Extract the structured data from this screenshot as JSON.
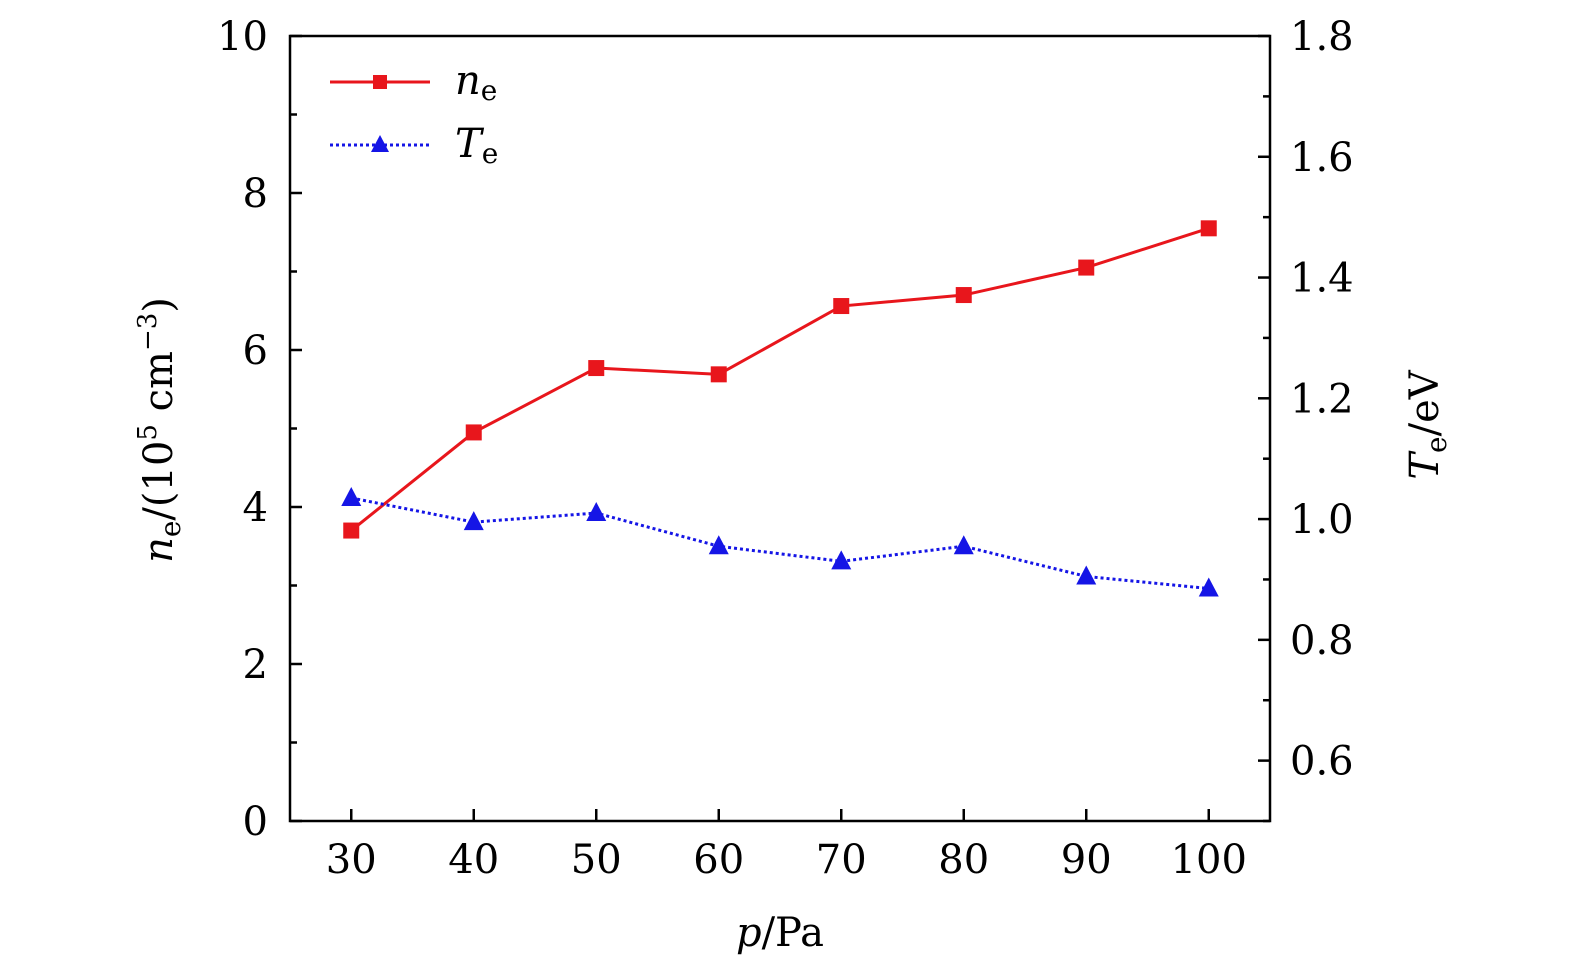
{
  "chart_data": {
    "type": "line",
    "x": [
      30,
      40,
      50,
      60,
      70,
      80,
      90,
      100
    ],
    "x_ticks": [
      "30",
      "40",
      "50",
      "60",
      "70",
      "80",
      "90",
      "100"
    ],
    "xlim": [
      25,
      105
    ],
    "xlabel": {
      "var": "p",
      "unit": "/Pa"
    },
    "ylim_left": [
      0,
      10
    ],
    "y_ticks_left": [
      0,
      2,
      4,
      6,
      8,
      10
    ],
    "y_ticks_left_labels": [
      "0",
      "2",
      "4",
      "6",
      "8",
      "10"
    ],
    "ylabel_left": {
      "var": "n",
      "sub": "e",
      "pre": "/(10",
      "sup1": "5",
      "mid": " cm",
      "sup2": "−3",
      "post": ")"
    },
    "ylim_right": [
      0.5,
      1.8
    ],
    "y_ticks_right": [
      0.6,
      0.8,
      1.0,
      1.2,
      1.4,
      1.6,
      1.8
    ],
    "y_ticks_right_labels": [
      "0.6",
      "0.8",
      "1.0",
      "1.2",
      "1.4",
      "1.6",
      "1.8"
    ],
    "ylabel_right": {
      "var": "T",
      "sub": "e",
      "unit": "/eV"
    },
    "series": [
      {
        "name": "ne",
        "legend_var": "n",
        "legend_sub": "e",
        "axis": "left",
        "color": "#e8161c",
        "marker": "square",
        "line": "solid",
        "values": [
          3.7,
          4.95,
          5.77,
          5.69,
          6.56,
          6.7,
          7.05,
          7.55
        ]
      },
      {
        "name": "Te",
        "legend_var": "T",
        "legend_sub": "e",
        "axis": "right",
        "color": "#1515e6",
        "marker": "triangle",
        "line": "dotted",
        "values": [
          1.035,
          0.995,
          1.01,
          0.955,
          0.93,
          0.955,
          0.905,
          0.885
        ]
      }
    ],
    "legend_position": "top-left",
    "grid": false
  }
}
